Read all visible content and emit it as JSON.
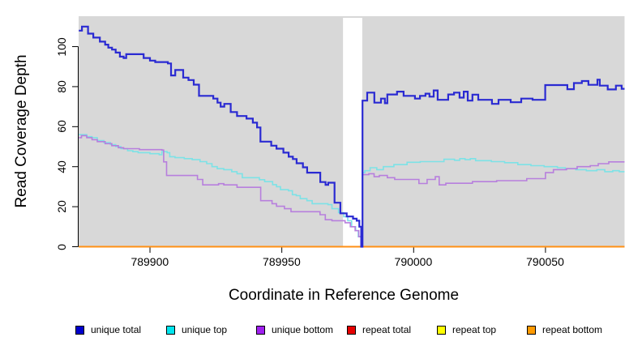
{
  "chart_data": {
    "type": "line",
    "subtype": "step",
    "title": "",
    "xlabel": "Coordinate in Reference Genome",
    "ylabel": "Read Coverage Depth",
    "xlim": [
      789873,
      790080
    ],
    "ylim": [
      0,
      115.2
    ],
    "xticks": [
      789900,
      789950,
      790000,
      790050
    ],
    "xtick_labels": [
      "789900",
      "789950",
      "790000",
      "790050"
    ],
    "yticks": [
      0,
      20,
      40,
      60,
      80,
      100
    ],
    "ytick_labels": [
      "0",
      "20",
      "40",
      "60",
      "80",
      "100"
    ],
    "grid": false,
    "plot_bg_color": "#d8d8d8",
    "figure_bg_color": "#ffffff",
    "axis_color": "#000000",
    "gap_region": {
      "x0": 789973.2,
      "x1": 789980.5,
      "color": "#ffffff"
    },
    "legend_position": "bottom",
    "series": [
      {
        "name": "unique total",
        "line_color": "#2a2ad2",
        "legend_color": "#0000cd",
        "line_width": 2.2,
        "z": 6,
        "points": [
          [
            789873,
            108
          ],
          [
            789874.2,
            110
          ],
          [
            789876.5,
            106.5
          ],
          [
            789878.5,
            104.5
          ],
          [
            789881,
            102.5
          ],
          [
            789883,
            101
          ],
          [
            789884.2,
            99.5
          ],
          [
            789885.6,
            98.5
          ],
          [
            789887,
            97
          ],
          [
            789888.6,
            95
          ],
          [
            789890,
            94.3
          ],
          [
            789891,
            96.2
          ],
          [
            789896,
            96.2
          ],
          [
            789897.6,
            94.3
          ],
          [
            789900,
            93
          ],
          [
            789902,
            92.3
          ],
          [
            789906.8,
            91.6
          ],
          [
            789908,
            85.6
          ],
          [
            789909.6,
            88.3
          ],
          [
            789912.6,
            84.5
          ],
          [
            789914.6,
            83.3
          ],
          [
            789916.6,
            81
          ],
          [
            789918.6,
            75.4
          ],
          [
            789924,
            74
          ],
          [
            789925.6,
            72
          ],
          [
            789926.8,
            70
          ],
          [
            789928.2,
            71.4
          ],
          [
            789930.6,
            67.3
          ],
          [
            789933,
            65.3
          ],
          [
            789936.6,
            64
          ],
          [
            789939,
            62
          ],
          [
            789940.6,
            59.6
          ],
          [
            789941.9,
            52.5
          ],
          [
            789946,
            50.5
          ],
          [
            789948,
            49
          ],
          [
            789950.6,
            47
          ],
          [
            789952.6,
            45
          ],
          [
            789954.2,
            43.8
          ],
          [
            789955.6,
            41.7
          ],
          [
            789958,
            39.7
          ],
          [
            789959.6,
            37
          ],
          [
            789964.6,
            32.3
          ],
          [
            789966.6,
            30.9
          ],
          [
            789967.6,
            32
          ],
          [
            789970,
            22
          ],
          [
            789972.2,
            16.7
          ],
          [
            789974.6,
            15.1
          ],
          [
            789977,
            14
          ],
          [
            789978.4,
            13
          ],
          [
            789979.4,
            10
          ],
          [
            789980.1,
            0
          ],
          [
            789980.6,
            73
          ],
          [
            789982.4,
            77
          ],
          [
            789985.1,
            72
          ],
          [
            789987.6,
            74
          ],
          [
            789989.1,
            71.7
          ],
          [
            789990,
            76.1
          ],
          [
            789993.7,
            77.5
          ],
          [
            789996.2,
            75.4
          ],
          [
            790000.5,
            74
          ],
          [
            790002.4,
            75.4
          ],
          [
            790004.5,
            76.5
          ],
          [
            790006,
            75
          ],
          [
            790007.6,
            78.1
          ],
          [
            790009.1,
            73.4
          ],
          [
            790013.1,
            76.1
          ],
          [
            790015.3,
            77
          ],
          [
            790017.4,
            74.5
          ],
          [
            790019,
            77.5
          ],
          [
            790020.5,
            73
          ],
          [
            790022.3,
            76
          ],
          [
            790024.5,
            73.4
          ],
          [
            790029.7,
            71.4
          ],
          [
            790032.2,
            73.4
          ],
          [
            790036.8,
            72.2
          ],
          [
            790040.8,
            74
          ],
          [
            790045.1,
            73.4
          ],
          [
            790049.9,
            80.8
          ],
          [
            790058.3,
            78.7
          ],
          [
            790060.8,
            81.8
          ],
          [
            790063.8,
            82.8
          ],
          [
            790066.3,
            80.9
          ],
          [
            790069.7,
            83.5
          ],
          [
            790070.6,
            80.5
          ],
          [
            790073.6,
            78.6
          ],
          [
            790076.7,
            80.5
          ],
          [
            790078.9,
            78.9
          ],
          [
            790080,
            78.9
          ]
        ]
      },
      {
        "name": "unique top",
        "line_color": "#7de2e6",
        "legend_color": "#00e5ee",
        "line_width": 1.6,
        "z": 4,
        "points": [
          [
            789873,
            56
          ],
          [
            789876,
            55
          ],
          [
            789878,
            54.5
          ],
          [
            789880,
            53
          ],
          [
            789882.5,
            52
          ],
          [
            789885,
            51
          ],
          [
            789887,
            50
          ],
          [
            789889,
            49
          ],
          [
            789891.5,
            48
          ],
          [
            789893.5,
            47.5
          ],
          [
            789895.5,
            47
          ],
          [
            789900,
            46.5
          ],
          [
            789903.5,
            46
          ],
          [
            789904.5,
            47.5
          ],
          [
            789906.5,
            47
          ],
          [
            789907.5,
            45
          ],
          [
            789909.5,
            44.5
          ],
          [
            789913,
            44
          ],
          [
            789916,
            43.5
          ],
          [
            789919,
            42.5
          ],
          [
            789921.5,
            41.5
          ],
          [
            789923.5,
            40
          ],
          [
            789925.5,
            39
          ],
          [
            789928,
            38.5
          ],
          [
            789931,
            37.5
          ],
          [
            789933,
            36.5
          ],
          [
            789935,
            34.5
          ],
          [
            789941.5,
            33.5
          ],
          [
            789943.5,
            32.5
          ],
          [
            789946.5,
            31
          ],
          [
            789948,
            30
          ],
          [
            789949.5,
            28.5
          ],
          [
            789952.5,
            28
          ],
          [
            789954,
            26
          ],
          [
            789955.5,
            25.5
          ],
          [
            789957,
            24
          ],
          [
            789959.5,
            23
          ],
          [
            789961.5,
            21.5
          ],
          [
            789967.5,
            21
          ],
          [
            789969,
            19
          ],
          [
            789971.5,
            17
          ],
          [
            789973.5,
            15
          ],
          [
            789975,
            13
          ],
          [
            789976.5,
            10
          ],
          [
            789978,
            8
          ],
          [
            789979,
            5
          ],
          [
            789980.1,
            3
          ],
          [
            789980.6,
            37
          ],
          [
            789981.5,
            38
          ],
          [
            789983.5,
            39.5
          ],
          [
            789986,
            38.5
          ],
          [
            789988.5,
            40
          ],
          [
            789992.5,
            41
          ],
          [
            789997.5,
            42.2
          ],
          [
            790002.5,
            42.5
          ],
          [
            790011.5,
            43.7
          ],
          [
            790015.5,
            43.2
          ],
          [
            790017.5,
            44
          ],
          [
            790019.5,
            43.5
          ],
          [
            790021.5,
            44
          ],
          [
            790023.5,
            43
          ],
          [
            790029.5,
            42.5
          ],
          [
            790034.5,
            42
          ],
          [
            790039.5,
            41
          ],
          [
            790044.5,
            40.5
          ],
          [
            790049.5,
            40
          ],
          [
            790054.5,
            39.5
          ],
          [
            790057.5,
            39
          ],
          [
            790061.5,
            38.5
          ],
          [
            790065.5,
            38
          ],
          [
            790069.5,
            38.5
          ],
          [
            790072.5,
            37.5
          ],
          [
            790075.5,
            38
          ],
          [
            790078,
            37.5
          ],
          [
            790080,
            37.5
          ]
        ]
      },
      {
        "name": "unique bottom",
        "line_color": "#b77fdd",
        "legend_color": "#a020f0",
        "line_width": 1.6,
        "z": 5,
        "points": [
          [
            789873,
            54.5
          ],
          [
            789874,
            55.5
          ],
          [
            789876,
            54.5
          ],
          [
            789878,
            53.5
          ],
          [
            789880,
            52.5
          ],
          [
            789883,
            51.5
          ],
          [
            789885.5,
            50.5
          ],
          [
            789888,
            49.5
          ],
          [
            789890,
            49
          ],
          [
            789896,
            48.5
          ],
          [
            789904.5,
            48.3
          ],
          [
            789905.2,
            42.4
          ],
          [
            789906.3,
            35.6
          ],
          [
            789918,
            33.6
          ],
          [
            789920,
            30.9
          ],
          [
            789926,
            31.5
          ],
          [
            789928,
            30.9
          ],
          [
            789933,
            29.7
          ],
          [
            789942,
            23
          ],
          [
            789946.3,
            21.5
          ],
          [
            789948,
            20.2
          ],
          [
            789951,
            19
          ],
          [
            789953.5,
            17.5
          ],
          [
            789964.5,
            16
          ],
          [
            789966.5,
            13.5
          ],
          [
            789969,
            13
          ],
          [
            789974,
            12
          ],
          [
            789976,
            10
          ],
          [
            789977.8,
            8
          ],
          [
            789979.2,
            5
          ],
          [
            789980.1,
            3
          ],
          [
            789980.6,
            36
          ],
          [
            789983,
            36.5
          ],
          [
            789985,
            35
          ],
          [
            789987,
            35.6
          ],
          [
            789990,
            34.5
          ],
          [
            789992.8,
            33.6
          ],
          [
            790002,
            31.6
          ],
          [
            790005.1,
            33.6
          ],
          [
            790008.2,
            35
          ],
          [
            790009.7,
            30.9
          ],
          [
            790012.2,
            31.7
          ],
          [
            790022.3,
            32.5
          ],
          [
            790031.5,
            33
          ],
          [
            790042.9,
            34
          ],
          [
            790050,
            37
          ],
          [
            790053,
            38.5
          ],
          [
            790058,
            39
          ],
          [
            790062,
            40
          ],
          [
            790067,
            40.5
          ],
          [
            790070,
            41.5
          ],
          [
            790074,
            42.4
          ],
          [
            790080,
            42.4
          ]
        ]
      },
      {
        "name": "repeat total",
        "line_color": "#e60000",
        "legend_color": "#e60000",
        "line_width": 1.6,
        "z": 1,
        "points": [
          [
            789873,
            0
          ],
          [
            790080,
            0
          ]
        ]
      },
      {
        "name": "repeat top",
        "line_color": "#ffff00",
        "legend_color": "#ffff00",
        "line_width": 1.6,
        "z": 2,
        "points": [
          [
            789873,
            0
          ],
          [
            790080,
            0
          ]
        ]
      },
      {
        "name": "repeat bottom",
        "line_color": "#ff8f14",
        "legend_color": "#ff9a00",
        "line_width": 2,
        "z": 3,
        "points": [
          [
            789873,
            0
          ],
          [
            790080,
            0
          ]
        ]
      }
    ]
  },
  "legend": {
    "items": [
      {
        "label": "unique total",
        "color": "#0000cd"
      },
      {
        "label": "unique top",
        "color": "#00e5ee"
      },
      {
        "label": "unique bottom",
        "color": "#a020f0"
      },
      {
        "label": "repeat total",
        "color": "#e60000"
      },
      {
        "label": "repeat top",
        "color": "#ffff00"
      },
      {
        "label": "repeat bottom",
        "color": "#ff9a00"
      }
    ]
  }
}
